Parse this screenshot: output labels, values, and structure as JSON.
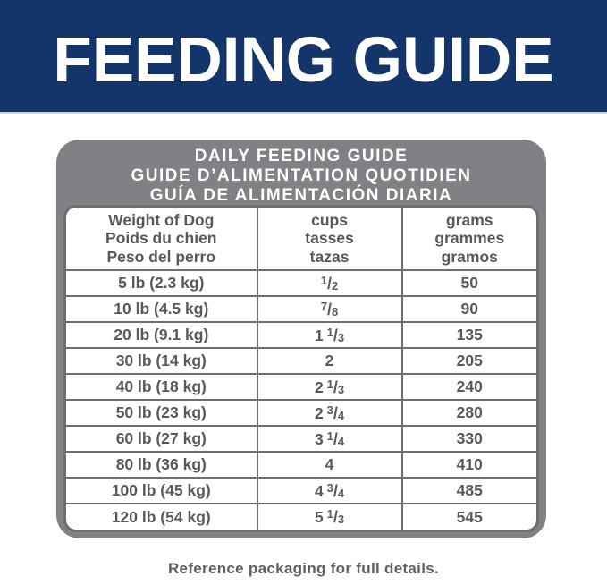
{
  "banner": {
    "title": "FEEDING GUIDE"
  },
  "panel": {
    "title_lines": [
      "DAILY FEEDING GUIDE",
      "GUIDE D’ALIMENTATION QUOTIDIEN",
      "GUÍA DE ALIMENTACIÓN DIARIA"
    ]
  },
  "table": {
    "fraction_slash": "/",
    "columns": [
      {
        "lines": [
          "Weight of Dog",
          "Poids du chien",
          "Peso del perro"
        ]
      },
      {
        "lines": [
          "cups",
          "tasses",
          "tazas"
        ]
      },
      {
        "lines": [
          "grams",
          "grammes",
          "gramos"
        ]
      }
    ],
    "rows": [
      {
        "weight": "5 lb (2.3 kg)",
        "cups": {
          "num": "1",
          "den": "2"
        },
        "grams": "50"
      },
      {
        "weight": "10 lb (4.5 kg)",
        "cups": {
          "num": "7",
          "den": "8"
        },
        "grams": "90"
      },
      {
        "weight": "20 lb (9.1 kg)",
        "cups": {
          "whole": "1",
          "num": "1",
          "den": "3"
        },
        "grams": "135"
      },
      {
        "weight": "30 lb (14 kg)",
        "cups": {
          "whole": "2"
        },
        "grams": "205"
      },
      {
        "weight": "40 lb (18 kg)",
        "cups": {
          "whole": "2",
          "num": "1",
          "den": "3"
        },
        "grams": "240"
      },
      {
        "weight": "50 lb (23 kg)",
        "cups": {
          "whole": "2",
          "num": "3",
          "den": "4"
        },
        "grams": "280"
      },
      {
        "weight": "60 lb (27 kg)",
        "cups": {
          "whole": "3",
          "num": "1",
          "den": "4"
        },
        "grams": "330"
      },
      {
        "weight": "80 lb (36 kg)",
        "cups": {
          "whole": "4"
        },
        "grams": "410"
      },
      {
        "weight": "100 lb (45 kg)",
        "cups": {
          "whole": "4",
          "num": "3",
          "den": "4"
        },
        "grams": "485"
      },
      {
        "weight": "120 lb (54 kg)",
        "cups": {
          "whole": "5",
          "num": "1",
          "den": "3"
        },
        "grams": "545"
      }
    ]
  },
  "footer": {
    "note": "Reference packaging for full details."
  },
  "colors": {
    "banner_blue": "#143569",
    "panel_gray": "#808184",
    "table_border": "#6d6e71",
    "text_gray": "#58595b"
  }
}
